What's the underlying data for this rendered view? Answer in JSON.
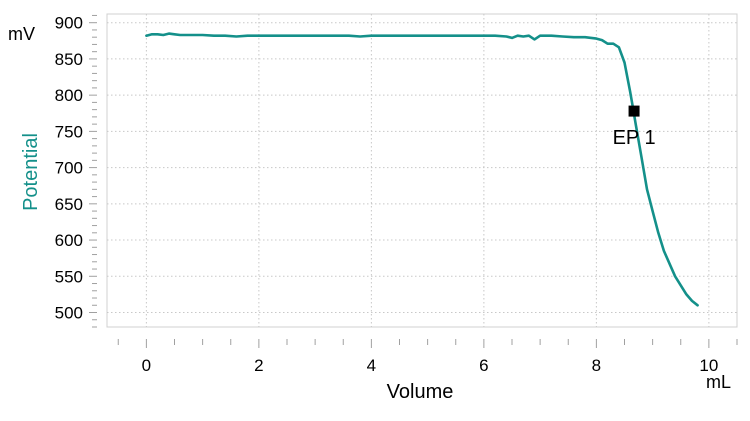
{
  "chart_data": {
    "type": "line",
    "title": "",
    "xlabel": "Volume",
    "ylabel": "Potential",
    "x_unit": "mL",
    "y_unit": "mV",
    "xlim": [
      -0.7,
      10.5
    ],
    "ylim": [
      480,
      912
    ],
    "x_ticks": [
      0,
      2,
      4,
      6,
      8,
      10
    ],
    "y_ticks": [
      500,
      550,
      600,
      650,
      700,
      750,
      800,
      850,
      900
    ],
    "grid": true,
    "colors": {
      "series": "#14908a",
      "ylabel": "#14908a",
      "marker": "#000000",
      "grid": "#c8c8c8",
      "axis": "#a0a0a0"
    },
    "series": [
      {
        "x": [
          0.0,
          0.1,
          0.2,
          0.3,
          0.4,
          0.5,
          0.6,
          0.8,
          1.0,
          1.2,
          1.4,
          1.6,
          1.8,
          2.0,
          2.2,
          2.4,
          2.6,
          2.8,
          3.0,
          3.2,
          3.4,
          3.6,
          3.8,
          4.0,
          4.2,
          4.4,
          4.6,
          4.8,
          5.0,
          5.2,
          5.4,
          5.6,
          5.8,
          6.0,
          6.2,
          6.4,
          6.5,
          6.6,
          6.7,
          6.8,
          6.9,
          7.0,
          7.1,
          7.2,
          7.4,
          7.6,
          7.8,
          8.0,
          8.1,
          8.2,
          8.3,
          8.4,
          8.5,
          8.55,
          8.6,
          8.65,
          8.7,
          8.8,
          8.9,
          9.0,
          9.1,
          9.2,
          9.4,
          9.6,
          9.7,
          9.8
        ],
        "y": [
          882,
          884,
          884,
          883,
          885,
          884,
          883,
          883,
          883,
          882,
          882,
          881,
          882,
          882,
          882,
          882,
          882,
          882,
          882,
          882,
          882,
          882,
          881,
          882,
          882,
          882,
          882,
          882,
          882,
          882,
          882,
          882,
          882,
          882,
          882,
          881,
          879,
          882,
          881,
          882,
          877,
          882,
          882,
          882,
          881,
          880,
          880,
          878,
          876,
          871,
          871,
          866,
          845,
          825,
          805,
          783,
          760,
          715,
          670,
          640,
          610,
          585,
          550,
          525,
          516,
          510
        ]
      }
    ],
    "annotations": [
      {
        "label": "EP 1",
        "x": 8.67,
        "y": 778
      }
    ]
  }
}
